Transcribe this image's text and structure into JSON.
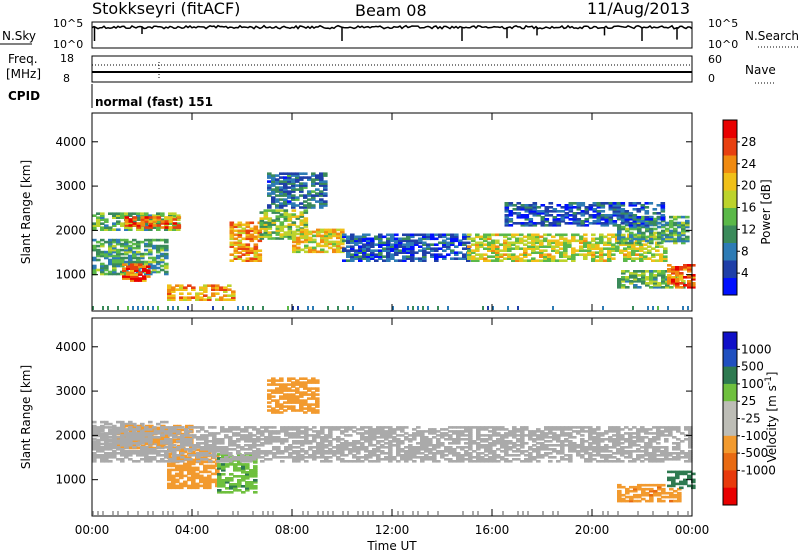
{
  "header": {
    "station": "Stokkseyri (fitACF)",
    "beam": "Beam 08",
    "date": "11/Aug/2013"
  },
  "panels": {
    "nsky": {
      "label": "N.Sky",
      "ticks": [
        "10^5",
        "10^0"
      ],
      "right_ticks": [
        "10^5",
        "10^0"
      ],
      "right_label": "N.Search",
      "right_label_style": "dotted"
    },
    "freq": {
      "label_line1": "Freq.",
      "label_line2": "[MHz]",
      "ticks": [
        "18",
        "8"
      ],
      "right_ticks": [
        "60",
        "0"
      ],
      "right_label": "Nave",
      "right_label_style": "dotted"
    },
    "cpid": {
      "label": "CPID",
      "text": "normal (fast) 151"
    }
  },
  "colors": {
    "power": [
      "#0010ff",
      "#1f3fa8",
      "#2d7bb5",
      "#3a8a5a",
      "#5ab848",
      "#bcd32c",
      "#f0c018",
      "#f08a10",
      "#e84010",
      "#e80000"
    ],
    "velocity": [
      "#1010c8",
      "#2050c0",
      "#2e7a50",
      "#6fc03e",
      "#bdbdb6",
      "#bdbdb6",
      "#f29a2e",
      "#e86a12",
      "#e83a0c",
      "#e80000"
    ],
    "ground_scatter": "#aaaaaa"
  },
  "chart_data": [
    {
      "type": "heatmap",
      "name": "Power",
      "ylabel": "Slant Range [km]",
      "ylim": [
        180,
        4650
      ],
      "yticks": [
        "1000",
        "2000",
        "3000",
        "4000"
      ],
      "xlim_hours": [
        0,
        24
      ],
      "colorbar": {
        "label": "Power [dB]",
        "ticks": [
          "4",
          "8",
          "12",
          "16",
          "20",
          "24",
          "28"
        ],
        "range": [
          0,
          32
        ]
      },
      "regions": [
        {
          "t0": 0.0,
          "t1": 3.4,
          "r0": 2000,
          "r1": 2400,
          "value": 14
        },
        {
          "t0": 1.3,
          "t1": 3.5,
          "r0": 2050,
          "r1": 2300,
          "value": 26
        },
        {
          "t0": 0.0,
          "t1": 3.0,
          "r0": 1000,
          "r1": 1800,
          "value": 12
        },
        {
          "t0": 1.2,
          "t1": 2.3,
          "r0": 850,
          "r1": 1250,
          "value": 27
        },
        {
          "t0": 3.0,
          "t1": 5.6,
          "r0": 420,
          "r1": 760,
          "value": 22
        },
        {
          "t0": 5.5,
          "t1": 6.7,
          "r0": 1300,
          "r1": 2200,
          "value": 23
        },
        {
          "t0": 6.7,
          "t1": 8.5,
          "r0": 1800,
          "r1": 2450,
          "value": 16
        },
        {
          "t0": 8.0,
          "t1": 10.0,
          "r0": 1500,
          "r1": 2000,
          "value": 20
        },
        {
          "t0": 10.0,
          "t1": 15.0,
          "r0": 1300,
          "r1": 1900,
          "value": 6
        },
        {
          "t0": 15.0,
          "t1": 23.0,
          "r0": 1300,
          "r1": 1900,
          "value": 18
        },
        {
          "t0": 21.0,
          "t1": 23.8,
          "r0": 1700,
          "r1": 2300,
          "value": 12
        },
        {
          "t0": 7.0,
          "t1": 9.4,
          "r0": 2500,
          "r1": 3300,
          "value": 8
        },
        {
          "t0": 16.5,
          "t1": 22.8,
          "r0": 2100,
          "r1": 2600,
          "value": 6
        },
        {
          "t0": 21.0,
          "t1": 23.6,
          "r0": 700,
          "r1": 1100,
          "value": 14
        },
        {
          "t0": 23.0,
          "t1": 24.0,
          "r0": 700,
          "r1": 1200,
          "value": 26
        }
      ]
    },
    {
      "type": "heatmap",
      "name": "Velocity",
      "ylabel": "Slant Range [km]",
      "ylim": [
        180,
        4650
      ],
      "yticks": [
        "1000",
        "2000",
        "3000",
        "4000"
      ],
      "xlim_hours": [
        0,
        24
      ],
      "xlabel": "Time UT",
      "xticks": [
        "00:00",
        "04:00",
        "08:00",
        "12:00",
        "16:00",
        "20:00",
        "00:00"
      ],
      "colorbar": {
        "label": "Velocity [m s^-1]",
        "ticks": [
          "1000",
          "500",
          "100",
          "25",
          "-25",
          "-100",
          "-500",
          "-1000"
        ]
      },
      "regions": [
        {
          "t0": 0.0,
          "t1": 3.0,
          "r0": 1700,
          "r1": 2300,
          "value": "gs"
        },
        {
          "t0": 1.0,
          "t1": 4.0,
          "r0": 1700,
          "r1": 2200,
          "value": -150
        },
        {
          "t0": 3.0,
          "t1": 5.0,
          "r0": 800,
          "r1": 1700,
          "value": -300
        },
        {
          "t0": 5.0,
          "t1": 6.5,
          "r0": 700,
          "r1": 1600,
          "value": 80
        },
        {
          "t0": 0.0,
          "t1": 24.0,
          "r0": 1400,
          "r1": 2200,
          "value": "gs"
        },
        {
          "t0": 7.0,
          "t1": 9.0,
          "r0": 2500,
          "r1": 3300,
          "value": -300
        },
        {
          "t0": 21.0,
          "t1": 23.5,
          "r0": 500,
          "r1": 900,
          "value": -400
        },
        {
          "t0": 23.0,
          "t1": 24.0,
          "r0": 800,
          "r1": 1200,
          "value": 200
        }
      ]
    }
  ],
  "series_top": {
    "nsky_level": 0.8,
    "freq_line_mhz": 11,
    "nave_dotted_level": 0.68
  }
}
